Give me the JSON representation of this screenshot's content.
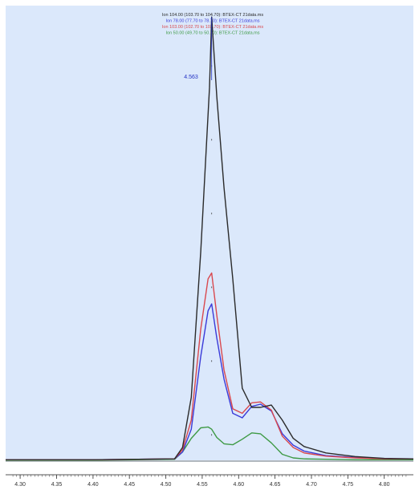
{
  "chart_data": {
    "type": "line",
    "legend_placement": "top-center",
    "grid": false,
    "background_color": "#dbe8fb",
    "peak_label": "4.563",
    "xlim": [
      4.28,
      4.84
    ],
    "ylim": [
      0,
      1.0
    ],
    "x_ticks": [
      {
        "value": 4.3,
        "label": "4.30"
      },
      {
        "value": 4.35,
        "label": "4.35"
      },
      {
        "value": 4.4,
        "label": "4.40"
      },
      {
        "value": 4.45,
        "label": "4.45"
      },
      {
        "value": 4.5,
        "label": "4.50"
      },
      {
        "value": 4.55,
        "label": "4.55"
      },
      {
        "value": 4.6,
        "label": "4.60"
      },
      {
        "value": 4.65,
        "label": "4.65"
      },
      {
        "value": 4.7,
        "label": "4.70"
      },
      {
        "value": 4.75,
        "label": "4.75"
      },
      {
        "value": 4.8,
        "label": "4.80"
      }
    ],
    "series": [
      {
        "name": "Ion 104.00 (103.70 to 104.70): BTEX-CT 21data.ms",
        "color": "#2a2a2a",
        "x": [
          4.28,
          4.4,
          4.512,
          4.523,
          4.535,
          4.548,
          4.56,
          4.563,
          4.57,
          4.58,
          4.592,
          4.605,
          4.618,
          4.63,
          4.645,
          4.66,
          4.675,
          4.69,
          4.72,
          4.76,
          4.8,
          4.84
        ],
        "y": [
          0.003,
          0.003,
          0.005,
          0.03,
          0.14,
          0.46,
          0.82,
          0.975,
          0.8,
          0.6,
          0.4,
          0.16,
          0.118,
          0.118,
          0.123,
          0.09,
          0.05,
          0.032,
          0.018,
          0.01,
          0.006,
          0.005
        ]
      },
      {
        "name": "Ion 78.00 (77.70 to 78.70): BTEX-CT 21data.ms",
        "color": "#3a3ad8",
        "x": [
          4.28,
          4.4,
          4.512,
          4.523,
          4.535,
          4.548,
          4.558,
          4.563,
          4.57,
          4.58,
          4.592,
          4.605,
          4.618,
          4.63,
          4.645,
          4.66,
          4.675,
          4.69,
          4.72,
          4.76,
          4.8,
          4.84
        ],
        "y": [
          0.003,
          0.003,
          0.005,
          0.02,
          0.07,
          0.23,
          0.33,
          0.345,
          0.27,
          0.18,
          0.105,
          0.095,
          0.12,
          0.125,
          0.11,
          0.06,
          0.035,
          0.022,
          0.012,
          0.008,
          0.005,
          0.005
        ]
      },
      {
        "name": "Ion 103.00 (102.70 to 103.70): BTEX-CT 21data.ms",
        "color": "#d9484e",
        "x": [
          4.28,
          4.4,
          4.512,
          4.523,
          4.535,
          4.548,
          4.558,
          4.563,
          4.57,
          4.58,
          4.592,
          4.605,
          4.618,
          4.63,
          4.645,
          4.66,
          4.675,
          4.69,
          4.72,
          4.76,
          4.8,
          4.84
        ],
        "y": [
          0.003,
          0.003,
          0.005,
          0.025,
          0.09,
          0.29,
          0.4,
          0.413,
          0.32,
          0.2,
          0.115,
          0.105,
          0.128,
          0.13,
          0.112,
          0.055,
          0.03,
          0.018,
          0.011,
          0.007,
          0.005,
          0.005
        ]
      },
      {
        "name": "Ion 50.00 (49.70 to 50.70): BTEX-CT 21data.ms",
        "color": "#3e9a45",
        "x": [
          4.28,
          4.4,
          4.512,
          4.523,
          4.535,
          4.548,
          4.558,
          4.563,
          4.57,
          4.58,
          4.592,
          4.605,
          4.618,
          4.63,
          4.645,
          4.66,
          4.675,
          4.69,
          4.72,
          4.76,
          4.8,
          4.84
        ],
        "y": [
          0.002,
          0.002,
          0.004,
          0.02,
          0.05,
          0.073,
          0.075,
          0.07,
          0.052,
          0.038,
          0.036,
          0.048,
          0.062,
          0.06,
          0.04,
          0.015,
          0.007,
          0.005,
          0.004,
          0.003,
          0.003,
          0.003
        ]
      }
    ]
  }
}
